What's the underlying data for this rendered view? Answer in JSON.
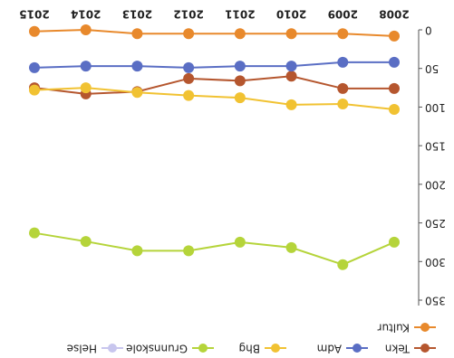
{
  "chart_data": {
    "type": "line",
    "rotated": 180,
    "categories": [
      "2008",
      "2009",
      "2010",
      "2011",
      "2012",
      "2013",
      "2014",
      "2015"
    ],
    "ylim": [
      0,
      350
    ],
    "yticks": [
      0,
      50,
      100,
      150,
      200,
      250,
      300,
      350
    ],
    "series": [
      {
        "name": "Tekn",
        "color": "#b5562e",
        "values": [
          76,
          76,
          60,
          66,
          63,
          80,
          83,
          75
        ]
      },
      {
        "name": "Adm",
        "color": "#5a6ec4",
        "values": [
          42,
          42,
          47,
          47,
          49,
          47,
          47,
          49
        ]
      },
      {
        "name": "Bhg",
        "color": "#f1c232",
        "values": [
          103,
          96,
          97,
          88,
          85,
          81,
          75,
          78
        ]
      },
      {
        "name": "Grunnskole",
        "color": "#b5d43a",
        "values": [
          275,
          304,
          282,
          275,
          286,
          286,
          274,
          263
        ]
      },
      {
        "name": "Helse",
        "color": "#c8c6ee",
        "values": [
          null,
          null,
          null,
          null,
          null,
          null,
          null,
          null
        ]
      },
      {
        "name": "Kultur",
        "color": "#e8892c",
        "values": [
          8,
          5,
          5,
          5,
          5,
          5,
          0,
          2
        ]
      }
    ]
  }
}
